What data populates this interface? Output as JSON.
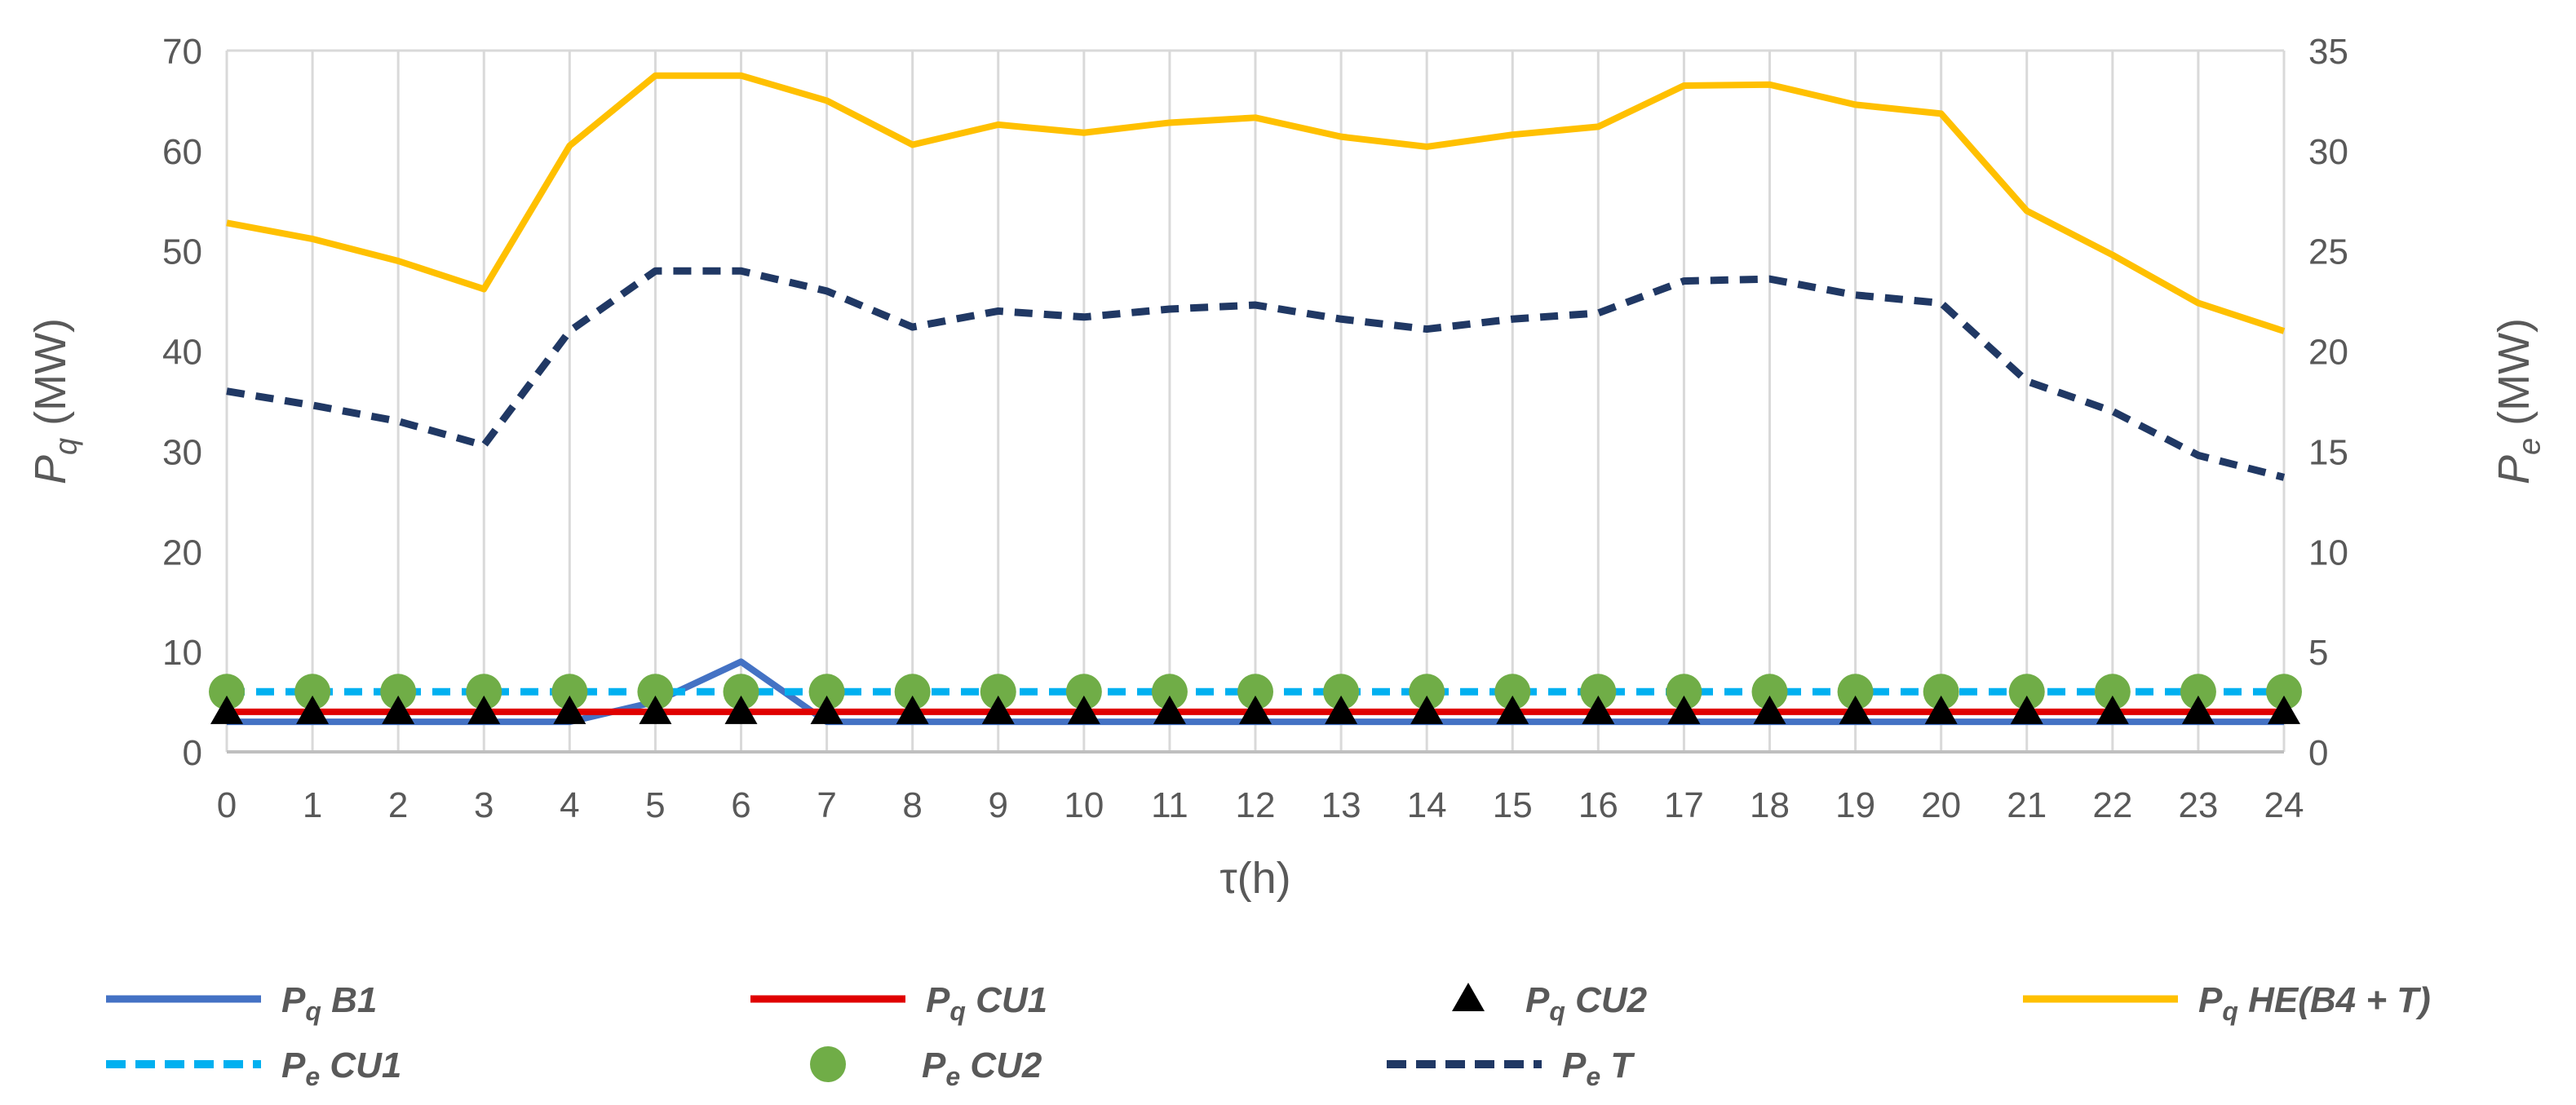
{
  "chart_data": {
    "type": "line",
    "title": "",
    "xlabel": "τ(h)",
    "ylabel_left": {
      "symbol": "P",
      "sub": "q",
      "unit": " (MW)"
    },
    "ylabel_right": {
      "symbol": "P",
      "sub": "e",
      "unit": " (MW)"
    },
    "x": [
      0,
      1,
      2,
      3,
      4,
      5,
      6,
      7,
      8,
      9,
      10,
      11,
      12,
      13,
      14,
      15,
      16,
      17,
      18,
      19,
      20,
      21,
      22,
      23,
      24
    ],
    "x_ticks": [
      "0",
      "1",
      "2",
      "3",
      "4",
      "5",
      "6",
      "7",
      "8",
      "9",
      "10",
      "11",
      "12",
      "13",
      "14",
      "15",
      "16",
      "17",
      "18",
      "19",
      "20",
      "21",
      "22",
      "23",
      "24"
    ],
    "y_left": {
      "range": [
        0,
        70
      ],
      "ticks": [
        "0",
        "10",
        "20",
        "30",
        "40",
        "50",
        "60",
        "70"
      ]
    },
    "y_right": {
      "range": [
        0,
        35
      ],
      "ticks": [
        "0",
        "5",
        "10",
        "15",
        "20",
        "25",
        "30",
        "35"
      ]
    },
    "grid": "vertical",
    "legend_position": "bottom",
    "series": [
      {
        "name": "Pq B1",
        "label": {
          "symbol": "P",
          "sub": "q",
          "rest": " B1"
        },
        "axis": "left",
        "style": "solid",
        "color": "#4472C4",
        "values": [
          3,
          3,
          3,
          3,
          3,
          5,
          9,
          3,
          3,
          3,
          3,
          3,
          3,
          3,
          3,
          3,
          3,
          3,
          3,
          3,
          3,
          3,
          3,
          3,
          3
        ]
      },
      {
        "name": "Pq CU1",
        "label": {
          "symbol": "P",
          "sub": "q",
          "rest": " CU1"
        },
        "axis": "left",
        "style": "solid",
        "color": "#E00000",
        "values": [
          4,
          4,
          4,
          4,
          4,
          4,
          4,
          4,
          4,
          4,
          4,
          4,
          4,
          4,
          4,
          4,
          4,
          4,
          4,
          4,
          4,
          4,
          4,
          4,
          4
        ]
      },
      {
        "name": "Pq CU2",
        "label": {
          "symbol": "P",
          "sub": "q",
          "rest": " CU2"
        },
        "axis": "left",
        "style": "triangle",
        "color": "#000000",
        "values": [
          4,
          4,
          4,
          4,
          4,
          4,
          4,
          4,
          4,
          4,
          4,
          4,
          4,
          4,
          4,
          4,
          4,
          4,
          4,
          4,
          4,
          4,
          4,
          4,
          4
        ]
      },
      {
        "name": "Pq HE(B4 + T)",
        "label": {
          "symbol": "P",
          "sub": "q",
          "rest": " HE(B4 + T)"
        },
        "axis": "left",
        "style": "solid",
        "color": "#FFC000",
        "values": [
          52.8,
          51.2,
          49,
          46.2,
          60.5,
          67.5,
          67.5,
          65,
          60.6,
          62.6,
          61.8,
          62.8,
          63.3,
          61.4,
          60.4,
          61.6,
          62.4,
          66.5,
          66.6,
          64.6,
          63.7,
          54,
          49.6,
          44.8,
          42
        ]
      },
      {
        "name": "Pe CU1",
        "label": {
          "symbol": "P",
          "sub": "e",
          "rest": " CU1"
        },
        "axis": "right",
        "style": "dashed",
        "color": "#00B0F0",
        "values": [
          3,
          3,
          3,
          3,
          3,
          3,
          3,
          3,
          3,
          3,
          3,
          3,
          3,
          3,
          3,
          3,
          3,
          3,
          3,
          3,
          3,
          3,
          3,
          3,
          3
        ]
      },
      {
        "name": "Pe CU2",
        "label": {
          "symbol": "P",
          "sub": "e",
          "rest": " CU2"
        },
        "axis": "right",
        "style": "circle",
        "color": "#70AD47",
        "values": [
          3,
          3,
          3,
          3,
          3,
          3,
          3,
          3,
          3,
          3,
          3,
          3,
          3,
          3,
          3,
          3,
          3,
          3,
          3,
          3,
          3,
          3,
          3,
          3,
          3
        ]
      },
      {
        "name": "Pe T",
        "label": {
          "symbol": "P",
          "sub": "e",
          "rest": " T"
        },
        "axis": "right",
        "style": "dashed",
        "color": "#203864",
        "values": [
          18,
          17.3,
          16.5,
          15.3,
          21,
          24,
          24,
          23,
          21.2,
          22,
          21.7,
          22.1,
          22.3,
          21.6,
          21.1,
          21.6,
          21.9,
          23.5,
          23.6,
          22.8,
          22.4,
          18.5,
          17,
          14.8,
          13.7
        ]
      }
    ]
  }
}
